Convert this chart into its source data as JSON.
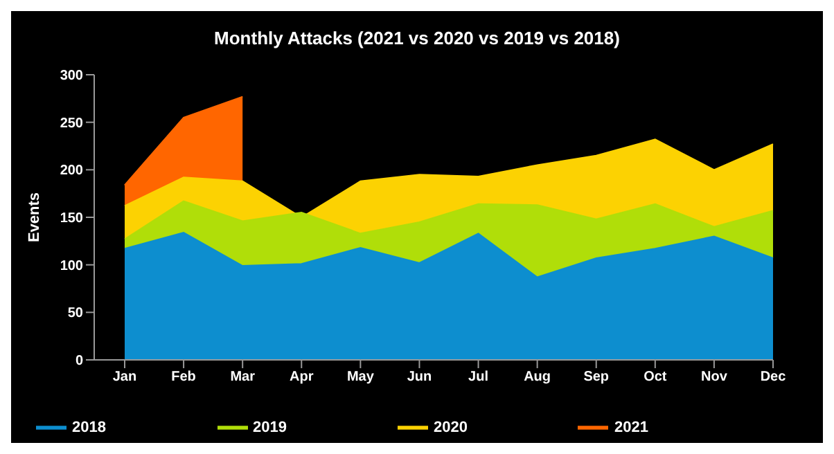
{
  "chart_data": {
    "type": "area",
    "title": "Monthly Attacks (2021 vs 2020 vs 2019 vs 2018)",
    "ylabel": "Events",
    "categories": [
      "Jan",
      "Feb",
      "Mar",
      "Apr",
      "May",
      "Jun",
      "Jul",
      "Aug",
      "Sep",
      "Oct",
      "Nov",
      "Dec"
    ],
    "series": [
      {
        "name": "2021",
        "color": "#ff6600",
        "values": [
          184,
          255,
          277,
          null,
          null,
          null,
          null,
          null,
          null,
          null,
          null,
          null
        ]
      },
      {
        "name": "2020",
        "color": "#fcd202",
        "values": [
          162,
          192,
          188,
          150,
          188,
          195,
          193,
          205,
          215,
          232,
          200,
          227
        ]
      },
      {
        "name": "2019",
        "color": "#b0de09",
        "values": [
          127,
          167,
          146,
          155,
          133,
          145,
          164,
          163,
          148,
          164,
          140,
          157
        ]
      },
      {
        "name": "2018",
        "color": "#0d8ecf",
        "values": [
          117,
          134,
          99,
          101,
          118,
          102,
          133,
          87,
          107,
          117,
          130,
          107
        ]
      }
    ],
    "ylim": [
      0,
      300
    ],
    "yticks": [
      0,
      50,
      100,
      150,
      200,
      250,
      300
    ],
    "grid": false,
    "legend": "bottom"
  }
}
